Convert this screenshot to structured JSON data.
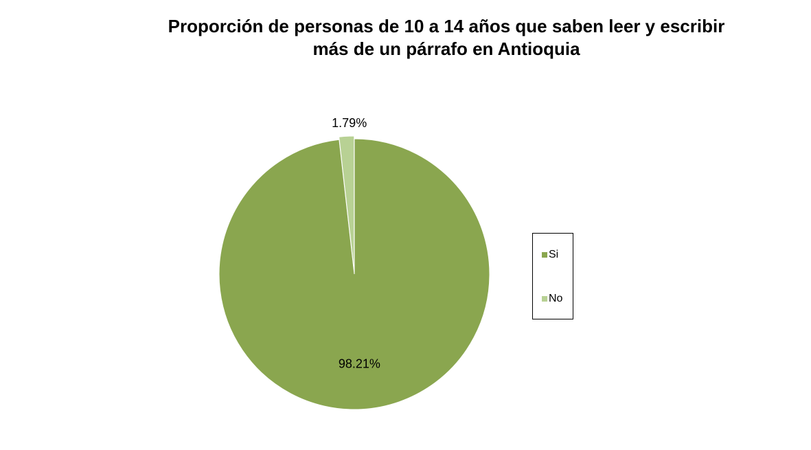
{
  "chart_data": {
    "type": "pie",
    "title_lines": [
      "Proporción de personas de 10 a 14 años que saben leer y escribir",
      "más de un párrafo en Antioquia"
    ],
    "slices": [
      {
        "label": "Si",
        "value": 98.21,
        "display": "98.21%",
        "color": "#8aa64f"
      },
      {
        "label": "No",
        "value": 1.79,
        "display": "1.79%",
        "color": "#b8d194"
      }
    ],
    "legend_position": "right",
    "start_angle_deg": 0,
    "direction": "clockwise"
  }
}
